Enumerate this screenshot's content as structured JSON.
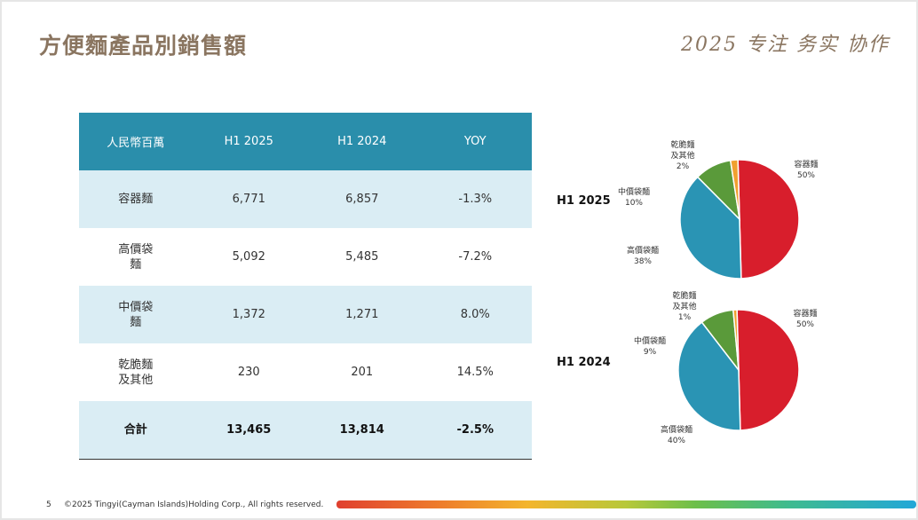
{
  "header": {
    "title": "方便麵產品別銷售額",
    "slogan": "2025 专注 务实 协作"
  },
  "table": {
    "headers": [
      "人民幣百萬",
      "H1 2025",
      "H1 2024",
      "YOY"
    ],
    "rows": [
      {
        "category": "容器麵",
        "h1_2025": "6,771",
        "h1_2024": "6,857",
        "yoy": "-1.3%"
      },
      {
        "category": "高價袋麵",
        "h1_2025": "5,092",
        "h1_2024": "5,485",
        "yoy": "-7.2%"
      },
      {
        "category": "中價袋麵",
        "h1_2025": "1,372",
        "h1_2024": "1,271",
        "yoy": "8.0%"
      },
      {
        "category": "乾脆麵及其他",
        "h1_2025": "230",
        "h1_2024": "201",
        "yoy": "14.5%"
      },
      {
        "category": "合計",
        "h1_2025": "13,465",
        "h1_2024": "13,814",
        "yoy": "-2.5%"
      }
    ]
  },
  "chart_data": [
    {
      "type": "pie",
      "title": "H1 2025",
      "categories": [
        "容器麵",
        "高價袋麵",
        "中價袋麵",
        "乾脆麵及其他"
      ],
      "values": [
        50,
        38,
        10,
        2
      ],
      "labels": [
        "50%",
        "38%",
        "10%",
        "2%"
      ],
      "colors": [
        "#d81e2c",
        "#2a94b4",
        "#5a9a3a",
        "#f0a030"
      ]
    },
    {
      "type": "pie",
      "title": "H1 2024",
      "categories": [
        "容器麵",
        "高價袋麵",
        "中價袋麵",
        "乾脆麵及其他"
      ],
      "values": [
        50,
        40,
        9,
        1
      ],
      "labels": [
        "50%",
        "40%",
        "9%",
        "1%"
      ],
      "colors": [
        "#d81e2c",
        "#2a94b4",
        "#5a9a3a",
        "#f0a030"
      ]
    }
  ],
  "footer": {
    "page": "5",
    "copyright": "©2025 Tingyi(Cayman Islands)Holding Corp., All rights reserved."
  }
}
